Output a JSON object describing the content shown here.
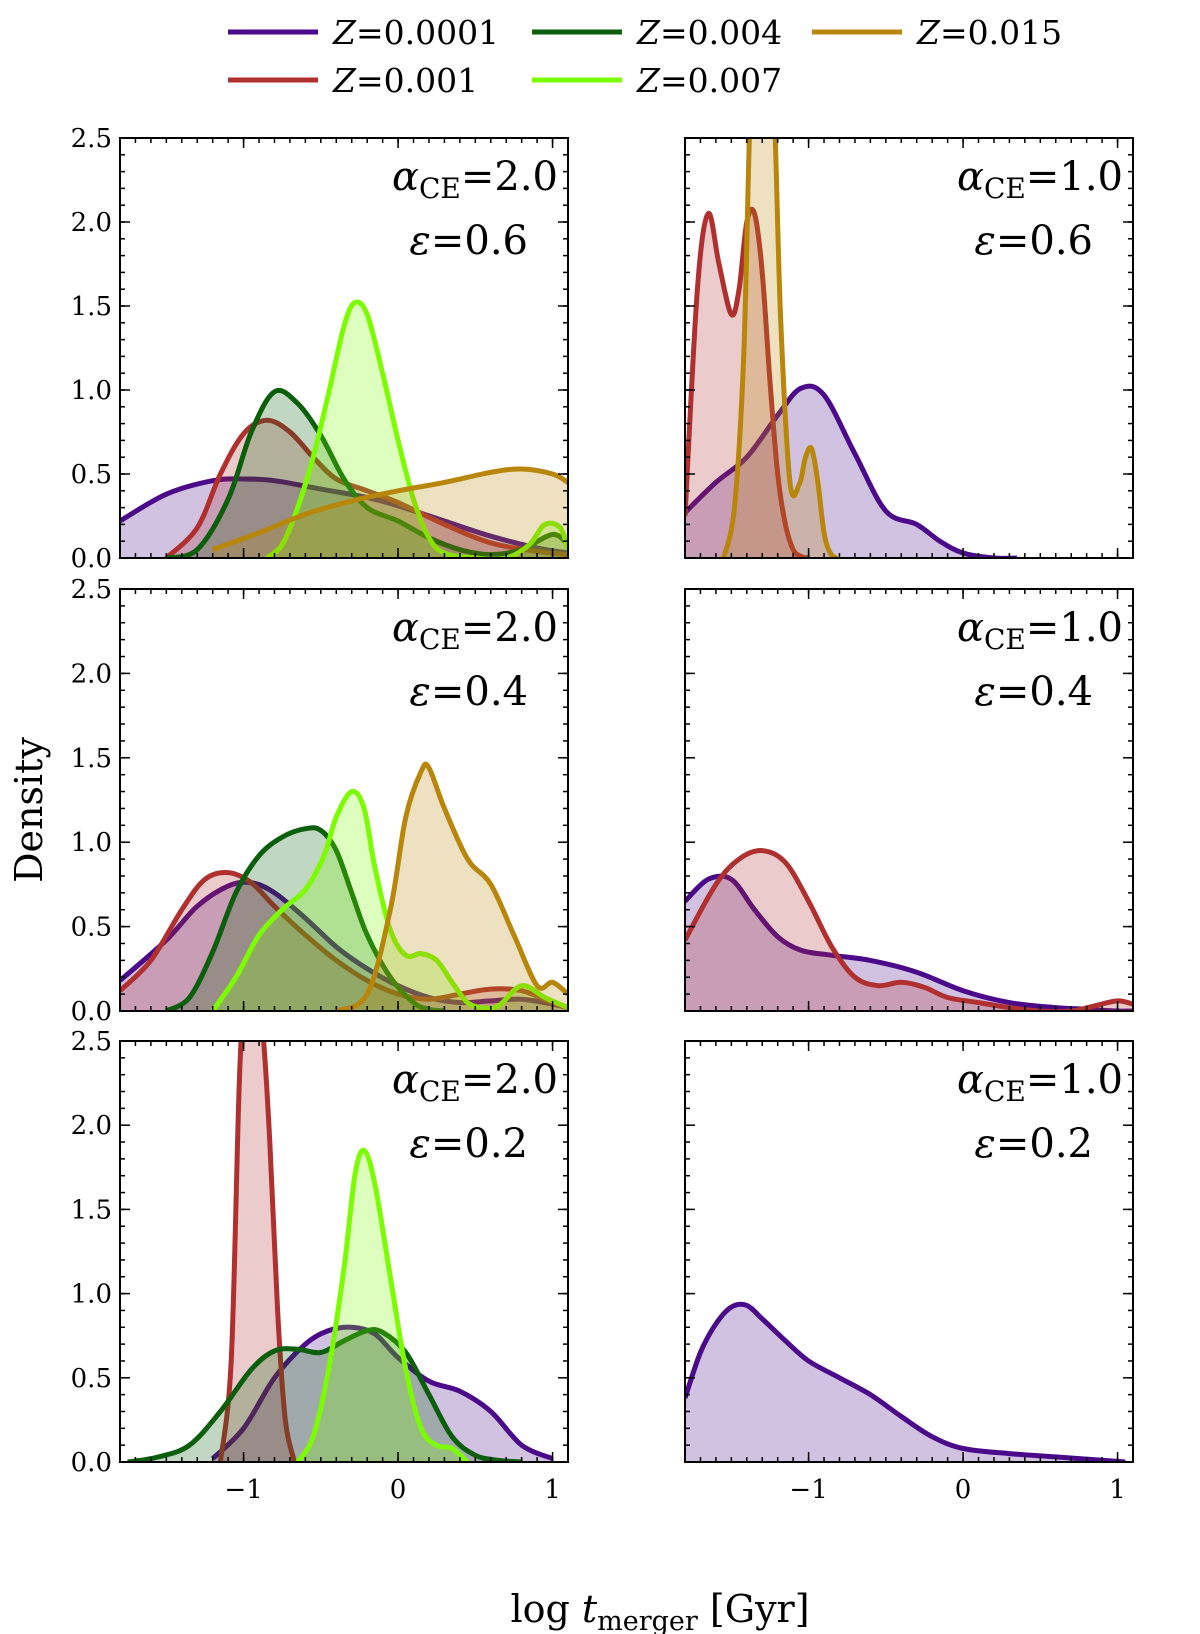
{
  "figure": {
    "ylabel": "Density",
    "xlabel_main": "log ",
    "xlabel_var": "t",
    "xlabel_sub": "merger",
    "xlabel_unit": " [Gyr]",
    "x_ticks": [
      -1,
      0,
      1
    ],
    "x_tick_labels": [
      "−1",
      "0",
      "1"
    ],
    "y_ticks": [
      0,
      0.5,
      1,
      1.5,
      2,
      2.5
    ],
    "y_tick_labels": [
      "0.0",
      "0.5",
      "1.0",
      "1.5",
      "2.0",
      "2.5"
    ],
    "xlim": [
      -1.8,
      1.1
    ],
    "ylim": [
      0,
      2.5
    ]
  },
  "legend": [
    {
      "var": "Z",
      "value": "=0.0001",
      "color": "#4b0a8a"
    },
    {
      "var": "Z",
      "value": "=0.004",
      "color": "#0b5e0b"
    },
    {
      "var": "Z",
      "value": "=0.015",
      "color": "#b8860b"
    },
    {
      "var": "Z",
      "value": "=0.001",
      "color": "#b03030"
    },
    {
      "var": "Z",
      "value": "=0.007",
      "color": "#7cfc00"
    }
  ],
  "chart_data": [
    {
      "type": "area",
      "panel": "alpha2_eps06",
      "annotation": {
        "alpha_symbol": "α",
        "alpha_sub": "CE",
        "alpha_value": "=2.0",
        "eps_symbol": "ε",
        "eps_value": "=0.6"
      },
      "series": [
        {
          "name": "Z=0.0001",
          "color": "#4b0a8a",
          "x": [
            -1.8,
            -1.5,
            -1.2,
            -1.0,
            -0.8,
            -0.5,
            -0.2,
            0.0,
            0.3,
            0.6,
            0.9,
            1.1
          ],
          "y": [
            0.22,
            0.38,
            0.46,
            0.47,
            0.46,
            0.41,
            0.36,
            0.31,
            0.22,
            0.13,
            0.06,
            0.03
          ]
        },
        {
          "name": "Z=0.001",
          "color": "#b03030",
          "x": [
            -1.5,
            -1.3,
            -1.15,
            -1.0,
            -0.85,
            -0.7,
            -0.55,
            -0.4,
            -0.2,
            0.0,
            0.3,
            0.6,
            0.9,
            1.1
          ],
          "y": [
            0.0,
            0.18,
            0.5,
            0.74,
            0.82,
            0.75,
            0.6,
            0.47,
            0.4,
            0.33,
            0.2,
            0.09,
            0.04,
            0.02
          ]
        },
        {
          "name": "Z=0.004",
          "color": "#0b5e0b",
          "x": [
            -1.5,
            -1.3,
            -1.1,
            -0.95,
            -0.8,
            -0.65,
            -0.5,
            -0.35,
            -0.2,
            0.0,
            0.2,
            0.4,
            0.6,
            0.8,
            1.0,
            1.1
          ],
          "y": [
            0.0,
            0.05,
            0.35,
            0.75,
            0.99,
            0.92,
            0.73,
            0.47,
            0.3,
            0.22,
            0.12,
            0.05,
            0.02,
            0.05,
            0.14,
            0.08
          ]
        },
        {
          "name": "Z=0.007",
          "color": "#7cfc00",
          "x": [
            -0.85,
            -0.75,
            -0.65,
            -0.55,
            -0.45,
            -0.35,
            -0.28,
            -0.2,
            -0.1,
            0.0,
            0.1,
            0.2,
            0.3,
            0.5,
            0.7,
            0.85,
            0.95,
            1.05,
            1.1
          ],
          "y": [
            0.0,
            0.08,
            0.3,
            0.6,
            0.98,
            1.38,
            1.52,
            1.45,
            1.1,
            0.7,
            0.35,
            0.12,
            0.03,
            0.0,
            0.0,
            0.08,
            0.2,
            0.18,
            0.05
          ]
        },
        {
          "name": "Z=0.015",
          "color": "#b8860b",
          "x": [
            -1.2,
            -0.9,
            -0.6,
            -0.3,
            0.0,
            0.3,
            0.6,
            0.8,
            1.0,
            1.1
          ],
          "y": [
            0.05,
            0.15,
            0.26,
            0.34,
            0.4,
            0.45,
            0.51,
            0.53,
            0.5,
            0.45
          ]
        }
      ]
    },
    {
      "type": "area",
      "panel": "alpha1_eps06",
      "annotation": {
        "alpha_symbol": "α",
        "alpha_sub": "CE",
        "alpha_value": "=1.0",
        "eps_symbol": "ε",
        "eps_value": "=0.6"
      },
      "series": [
        {
          "name": "Z=0.0001",
          "color": "#4b0a8a",
          "x": [
            -1.8,
            -1.6,
            -1.4,
            -1.2,
            -1.05,
            -0.9,
            -0.7,
            -0.5,
            -0.3,
            -0.15,
            0.0,
            0.2,
            0.35
          ],
          "y": [
            0.27,
            0.45,
            0.6,
            0.85,
            1.01,
            0.97,
            0.62,
            0.28,
            0.2,
            0.1,
            0.03,
            0.0,
            0.0
          ]
        },
        {
          "name": "Z=0.001",
          "color": "#b03030",
          "x": [
            -1.8,
            -1.72,
            -1.65,
            -1.58,
            -1.5,
            -1.45,
            -1.4,
            -1.35,
            -1.3,
            -1.25,
            -1.2,
            -1.15,
            -1.1,
            -1.05,
            -1.0
          ],
          "y": [
            0.25,
            1.6,
            2.05,
            1.75,
            1.45,
            1.6,
            2.0,
            2.05,
            1.7,
            1.05,
            0.5,
            0.2,
            0.05,
            0.01,
            0.0
          ]
        },
        {
          "name": "Z=0.015",
          "color": "#b8860b",
          "x": [
            -1.55,
            -1.48,
            -1.42,
            -1.38,
            -1.34,
            -1.3,
            -1.26,
            -1.22,
            -1.18,
            -1.12,
            -1.06,
            -1.02,
            -0.98,
            -0.94,
            -0.9,
            -0.86,
            -0.82
          ],
          "y": [
            0.0,
            0.3,
            1.2,
            2.6,
            3.2,
            3.3,
            3.2,
            2.6,
            1.4,
            0.45,
            0.44,
            0.6,
            0.65,
            0.45,
            0.15,
            0.03,
            0.0
          ]
        }
      ]
    },
    {
      "type": "area",
      "panel": "alpha2_eps04",
      "annotation": {
        "alpha_symbol": "α",
        "alpha_sub": "CE",
        "alpha_value": "=2.0",
        "eps_symbol": "ε",
        "eps_value": "=0.4"
      },
      "series": [
        {
          "name": "Z=0.0001",
          "color": "#4b0a8a",
          "x": [
            -1.8,
            -1.5,
            -1.3,
            -1.1,
            -0.95,
            -0.8,
            -0.6,
            -0.4,
            -0.2,
            0.0,
            0.2,
            0.4,
            0.6,
            0.8,
            1.0,
            1.1
          ],
          "y": [
            0.18,
            0.42,
            0.62,
            0.74,
            0.76,
            0.7,
            0.55,
            0.38,
            0.25,
            0.15,
            0.08,
            0.05,
            0.06,
            0.07,
            0.04,
            0.02
          ]
        },
        {
          "name": "Z=0.001",
          "color": "#b03030",
          "x": [
            -1.8,
            -1.6,
            -1.4,
            -1.25,
            -1.1,
            -0.95,
            -0.8,
            -0.6,
            -0.4,
            -0.2,
            0.0,
            0.2,
            0.4,
            0.6,
            0.8,
            1.0,
            1.1
          ],
          "y": [
            0.12,
            0.3,
            0.6,
            0.78,
            0.82,
            0.76,
            0.62,
            0.45,
            0.3,
            0.18,
            0.1,
            0.07,
            0.1,
            0.13,
            0.12,
            0.05,
            0.02
          ]
        },
        {
          "name": "Z=0.004",
          "color": "#0b5e0b",
          "x": [
            -1.5,
            -1.35,
            -1.2,
            -1.05,
            -0.9,
            -0.75,
            -0.6,
            -0.5,
            -0.4,
            -0.3,
            -0.2,
            -0.05,
            0.1,
            0.2,
            0.3
          ],
          "y": [
            0.0,
            0.08,
            0.35,
            0.7,
            0.92,
            1.03,
            1.08,
            1.07,
            0.95,
            0.7,
            0.45,
            0.2,
            0.05,
            0.01,
            0.0
          ]
        },
        {
          "name": "Z=0.007",
          "color": "#7cfc00",
          "x": [
            -1.2,
            -1.05,
            -0.9,
            -0.75,
            -0.6,
            -0.48,
            -0.4,
            -0.3,
            -0.22,
            -0.15,
            -0.05,
            0.05,
            0.15,
            0.25,
            0.35,
            0.45,
            0.55,
            0.65,
            0.8,
            0.95,
            1.1
          ],
          "y": [
            0.0,
            0.2,
            0.45,
            0.6,
            0.72,
            0.92,
            1.15,
            1.3,
            1.2,
            0.85,
            0.48,
            0.33,
            0.34,
            0.3,
            0.17,
            0.05,
            0.02,
            0.03,
            0.15,
            0.08,
            0.02
          ]
        },
        {
          "name": "Z=0.015",
          "color": "#b8860b",
          "x": [
            -0.4,
            -0.2,
            -0.05,
            0.05,
            0.15,
            0.2,
            0.3,
            0.45,
            0.6,
            0.75,
            0.9,
            1.0,
            1.1
          ],
          "y": [
            0.0,
            0.1,
            0.6,
            1.15,
            1.42,
            1.44,
            1.2,
            0.9,
            0.75,
            0.45,
            0.15,
            0.17,
            0.1
          ]
        }
      ]
    },
    {
      "type": "area",
      "panel": "alpha1_eps04",
      "annotation": {
        "alpha_symbol": "α",
        "alpha_sub": "CE",
        "alpha_value": "=1.0",
        "eps_symbol": "ε",
        "eps_value": "=0.4"
      },
      "series": [
        {
          "name": "Z=0.0001",
          "color": "#4b0a8a",
          "x": [
            -1.8,
            -1.65,
            -1.5,
            -1.35,
            -1.2,
            -1.05,
            -0.85,
            -0.6,
            -0.3,
            0.0,
            0.3,
            0.6,
            0.8,
            1.0,
            1.1
          ],
          "y": [
            0.65,
            0.78,
            0.78,
            0.6,
            0.44,
            0.36,
            0.33,
            0.3,
            0.23,
            0.12,
            0.05,
            0.02,
            0.01,
            0.0,
            0.0
          ]
        },
        {
          "name": "Z=0.001",
          "color": "#b03030",
          "x": [
            -1.8,
            -1.6,
            -1.45,
            -1.3,
            -1.15,
            -1.0,
            -0.85,
            -0.7,
            -0.55,
            -0.4,
            -0.25,
            -0.1,
            0.1,
            0.3,
            0.5,
            0.7,
            0.85,
            1.0,
            1.1
          ],
          "y": [
            0.42,
            0.75,
            0.9,
            0.95,
            0.88,
            0.65,
            0.38,
            0.2,
            0.15,
            0.17,
            0.14,
            0.08,
            0.05,
            0.02,
            0.0,
            0.0,
            0.03,
            0.06,
            0.04
          ]
        }
      ]
    },
    {
      "type": "area",
      "panel": "alpha2_eps02",
      "annotation": {
        "alpha_symbol": "α",
        "alpha_sub": "CE",
        "alpha_value": "=2.0",
        "eps_symbol": "ε",
        "eps_value": "=0.2"
      },
      "series": [
        {
          "name": "Z=0.0001",
          "color": "#4b0a8a",
          "x": [
            -1.2,
            -1.0,
            -0.8,
            -0.6,
            -0.45,
            -0.3,
            -0.15,
            0.0,
            0.2,
            0.4,
            0.6,
            0.8,
            1.0
          ],
          "y": [
            0.02,
            0.2,
            0.5,
            0.7,
            0.78,
            0.8,
            0.76,
            0.62,
            0.48,
            0.42,
            0.3,
            0.1,
            0.02
          ]
        },
        {
          "name": "Z=0.001",
          "color": "#b03030",
          "x": [
            -1.15,
            -1.08,
            -1.03,
            -1.0,
            -0.97,
            -0.93,
            -0.88,
            -0.83,
            -0.78,
            -0.73,
            -0.67
          ],
          "y": [
            0.0,
            0.6,
            2.2,
            2.7,
            2.8,
            2.75,
            2.6,
            1.9,
            0.9,
            0.25,
            0.0
          ]
        },
        {
          "name": "Z=0.004",
          "color": "#0b5e0b",
          "x": [
            -1.75,
            -1.55,
            -1.35,
            -1.15,
            -0.95,
            -0.8,
            -0.65,
            -0.5,
            -0.35,
            -0.2,
            -0.1,
            0.05,
            0.2,
            0.35,
            0.5,
            0.65,
            0.8
          ],
          "y": [
            0.0,
            0.03,
            0.1,
            0.3,
            0.55,
            0.66,
            0.67,
            0.65,
            0.72,
            0.78,
            0.77,
            0.65,
            0.4,
            0.15,
            0.04,
            0.01,
            0.0
          ]
        },
        {
          "name": "Z=0.007",
          "color": "#7cfc00",
          "x": [
            -0.65,
            -0.55,
            -0.45,
            -0.35,
            -0.28,
            -0.22,
            -0.15,
            -0.05,
            0.05,
            0.15,
            0.25,
            0.35,
            0.45
          ],
          "y": [
            0.0,
            0.15,
            0.55,
            1.15,
            1.7,
            1.85,
            1.65,
            1.1,
            0.55,
            0.2,
            0.1,
            0.08,
            0.0
          ]
        }
      ]
    },
    {
      "type": "area",
      "panel": "alpha1_eps02",
      "annotation": {
        "alpha_symbol": "α",
        "alpha_sub": "CE",
        "alpha_value": "=1.0",
        "eps_symbol": "ε",
        "eps_value": "=0.2"
      },
      "series": [
        {
          "name": "Z=0.0001",
          "color": "#4b0a8a",
          "x": [
            -1.8,
            -1.7,
            -1.6,
            -1.5,
            -1.4,
            -1.3,
            -1.15,
            -1.0,
            -0.8,
            -0.6,
            -0.4,
            -0.2,
            0.0,
            0.3,
            0.6,
            0.9,
            1.05
          ],
          "y": [
            0.38,
            0.65,
            0.82,
            0.92,
            0.93,
            0.85,
            0.72,
            0.6,
            0.5,
            0.4,
            0.27,
            0.15,
            0.08,
            0.05,
            0.03,
            0.01,
            0.0
          ]
        }
      ]
    }
  ]
}
